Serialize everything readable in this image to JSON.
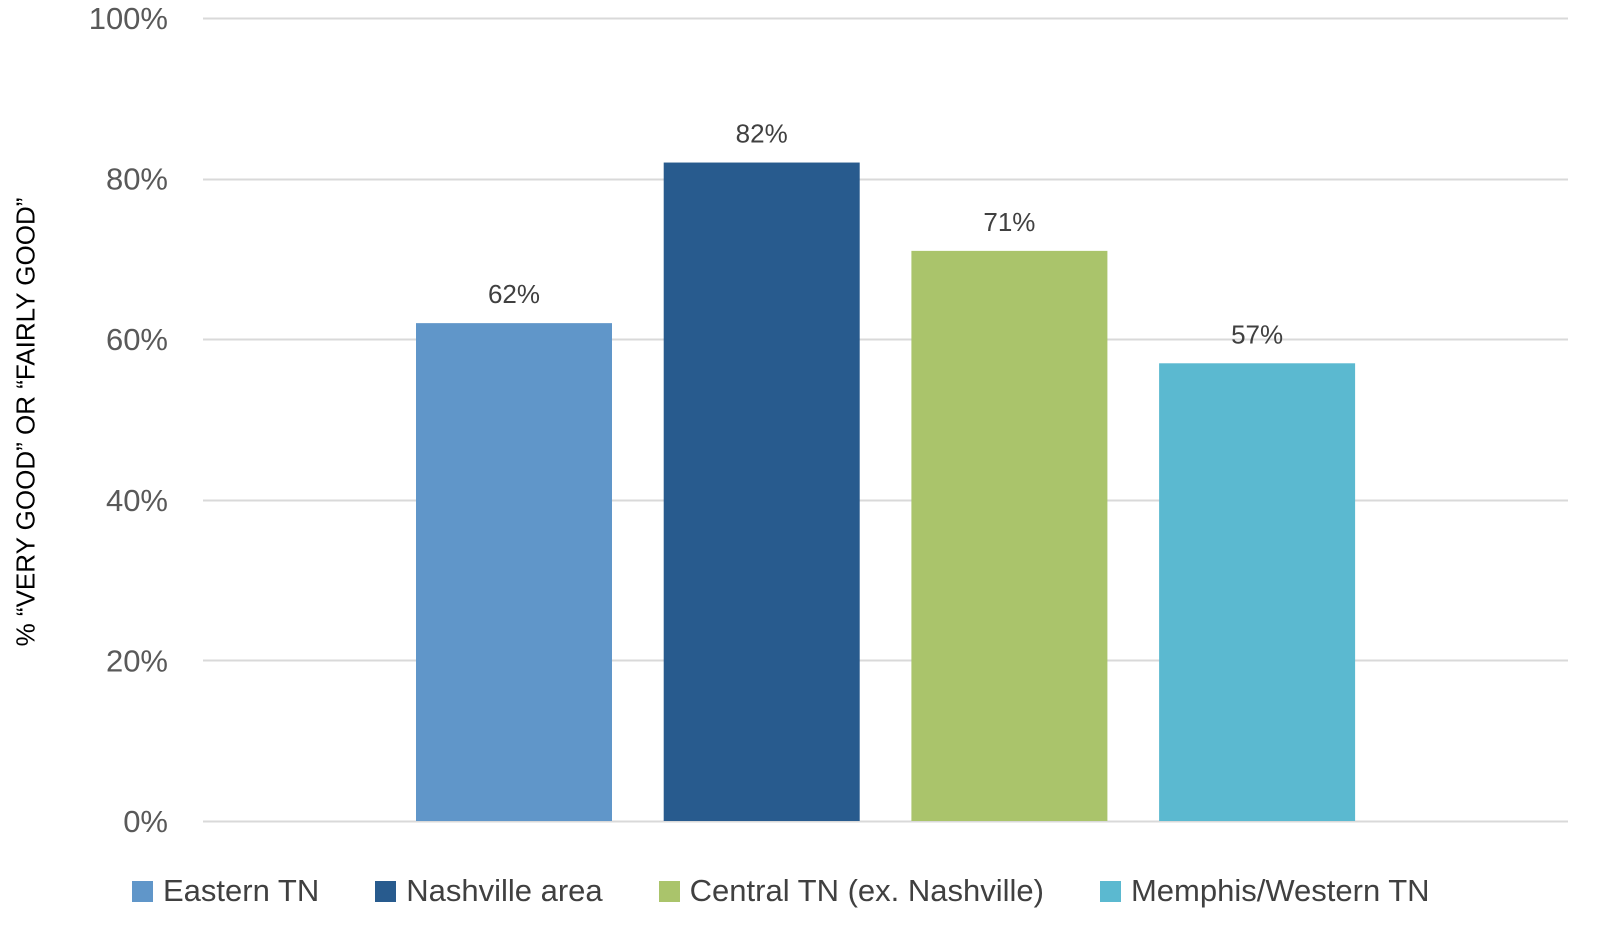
{
  "chart_data": {
    "type": "bar",
    "title": "",
    "xlabel": "",
    "ylabel": "% “VERY GOOD” OR “FAIRLY GOOD”",
    "ylim": [
      0,
      100
    ],
    "yticks": [
      0,
      20,
      40,
      60,
      80,
      100
    ],
    "ytick_labels": [
      "0%",
      "20%",
      "40%",
      "60%",
      "80%",
      "100%"
    ],
    "grid": true,
    "legend_position": "bottom",
    "categories": [
      "Eastern TN",
      "Nashville area",
      "Central TN (ex. Nashville)",
      "Memphis/Western TN"
    ],
    "values": [
      62,
      82,
      71,
      57
    ],
    "data_labels": [
      "62%",
      "82%",
      "71%",
      "57%"
    ],
    "colors": [
      "#6096C9",
      "#285B8E",
      "#AAC46B",
      "#5BB9D0"
    ]
  }
}
